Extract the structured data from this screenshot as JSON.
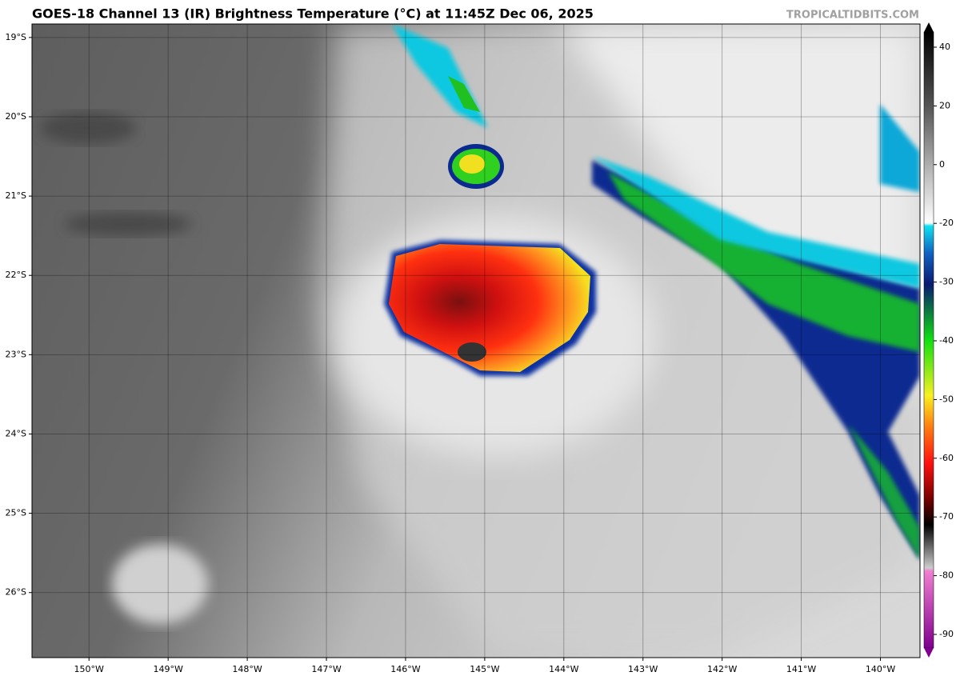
{
  "chart_data": {
    "type": "map",
    "title": "GOES-18 Channel 13 (IR) Brightness Temperature (°C) at 11:45Z Dec 06, 2025",
    "watermark": "TROPICALTIDBITS.COM",
    "xlim": [
      -150.72,
      -139.5
    ],
    "ylim": [
      -26.82,
      -18.83
    ],
    "grid": true,
    "xticks": [
      {
        "value": -150,
        "label": "150°W"
      },
      {
        "value": -149,
        "label": "149°W"
      },
      {
        "value": -148,
        "label": "148°W"
      },
      {
        "value": -147,
        "label": "147°W"
      },
      {
        "value": -146,
        "label": "146°W"
      },
      {
        "value": -145,
        "label": "145°W"
      },
      {
        "value": -144,
        "label": "144°W"
      },
      {
        "value": -143,
        "label": "143°W"
      },
      {
        "value": -142,
        "label": "142°W"
      },
      {
        "value": -141,
        "label": "141°W"
      },
      {
        "value": -140,
        "label": "140°W"
      }
    ],
    "yticks": [
      {
        "value": -19,
        "label": "19°S"
      },
      {
        "value": -20,
        "label": "20°S"
      },
      {
        "value": -21,
        "label": "21°S"
      },
      {
        "value": -22,
        "label": "22°S"
      },
      {
        "value": -23,
        "label": "23°S"
      },
      {
        "value": -24,
        "label": "24°S"
      },
      {
        "value": -25,
        "label": "25°S"
      },
      {
        "value": -26,
        "label": "26°S"
      }
    ],
    "colorbar_ticks": [
      40,
      20,
      0,
      -20,
      -30,
      -40,
      -50,
      -60,
      -70,
      -80,
      -90
    ]
  }
}
